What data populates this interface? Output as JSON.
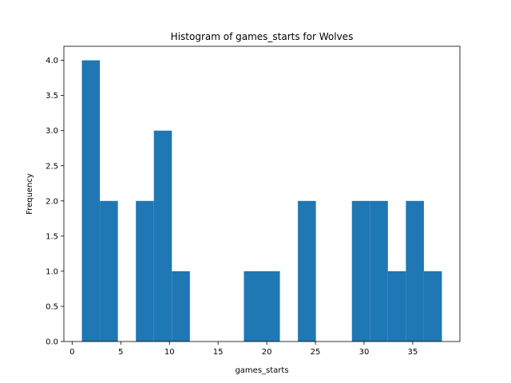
{
  "chart_data": {
    "type": "bar",
    "title": "Histogram of games_starts for Wolves",
    "xlabel": "games_starts",
    "ylabel": "Frequency",
    "bar_color": "#1f77b4",
    "xlim": [
      -0.85,
      39.85
    ],
    "ylim": [
      0,
      4.2
    ],
    "xticks": [
      0,
      5,
      10,
      15,
      20,
      25,
      30,
      35
    ],
    "yticks": [
      0.0,
      0.5,
      1.0,
      1.5,
      2.0,
      2.5,
      3.0,
      3.5,
      4.0
    ],
    "xtick_labels": [
      "0",
      "5",
      "10",
      "15",
      "20",
      "25",
      "30",
      "35"
    ],
    "ytick_labels": [
      "0.0",
      "0.5",
      "1.0",
      "1.5",
      "2.0",
      "2.5",
      "3.0",
      "3.5",
      "4.0"
    ],
    "grid": false,
    "bin_start": 1,
    "bin_end": 38,
    "counts": [
      4,
      2,
      0,
      2,
      3,
      1,
      0,
      0,
      0,
      1,
      1,
      0,
      2,
      0,
      0,
      2,
      2,
      1,
      2,
      1
    ]
  }
}
